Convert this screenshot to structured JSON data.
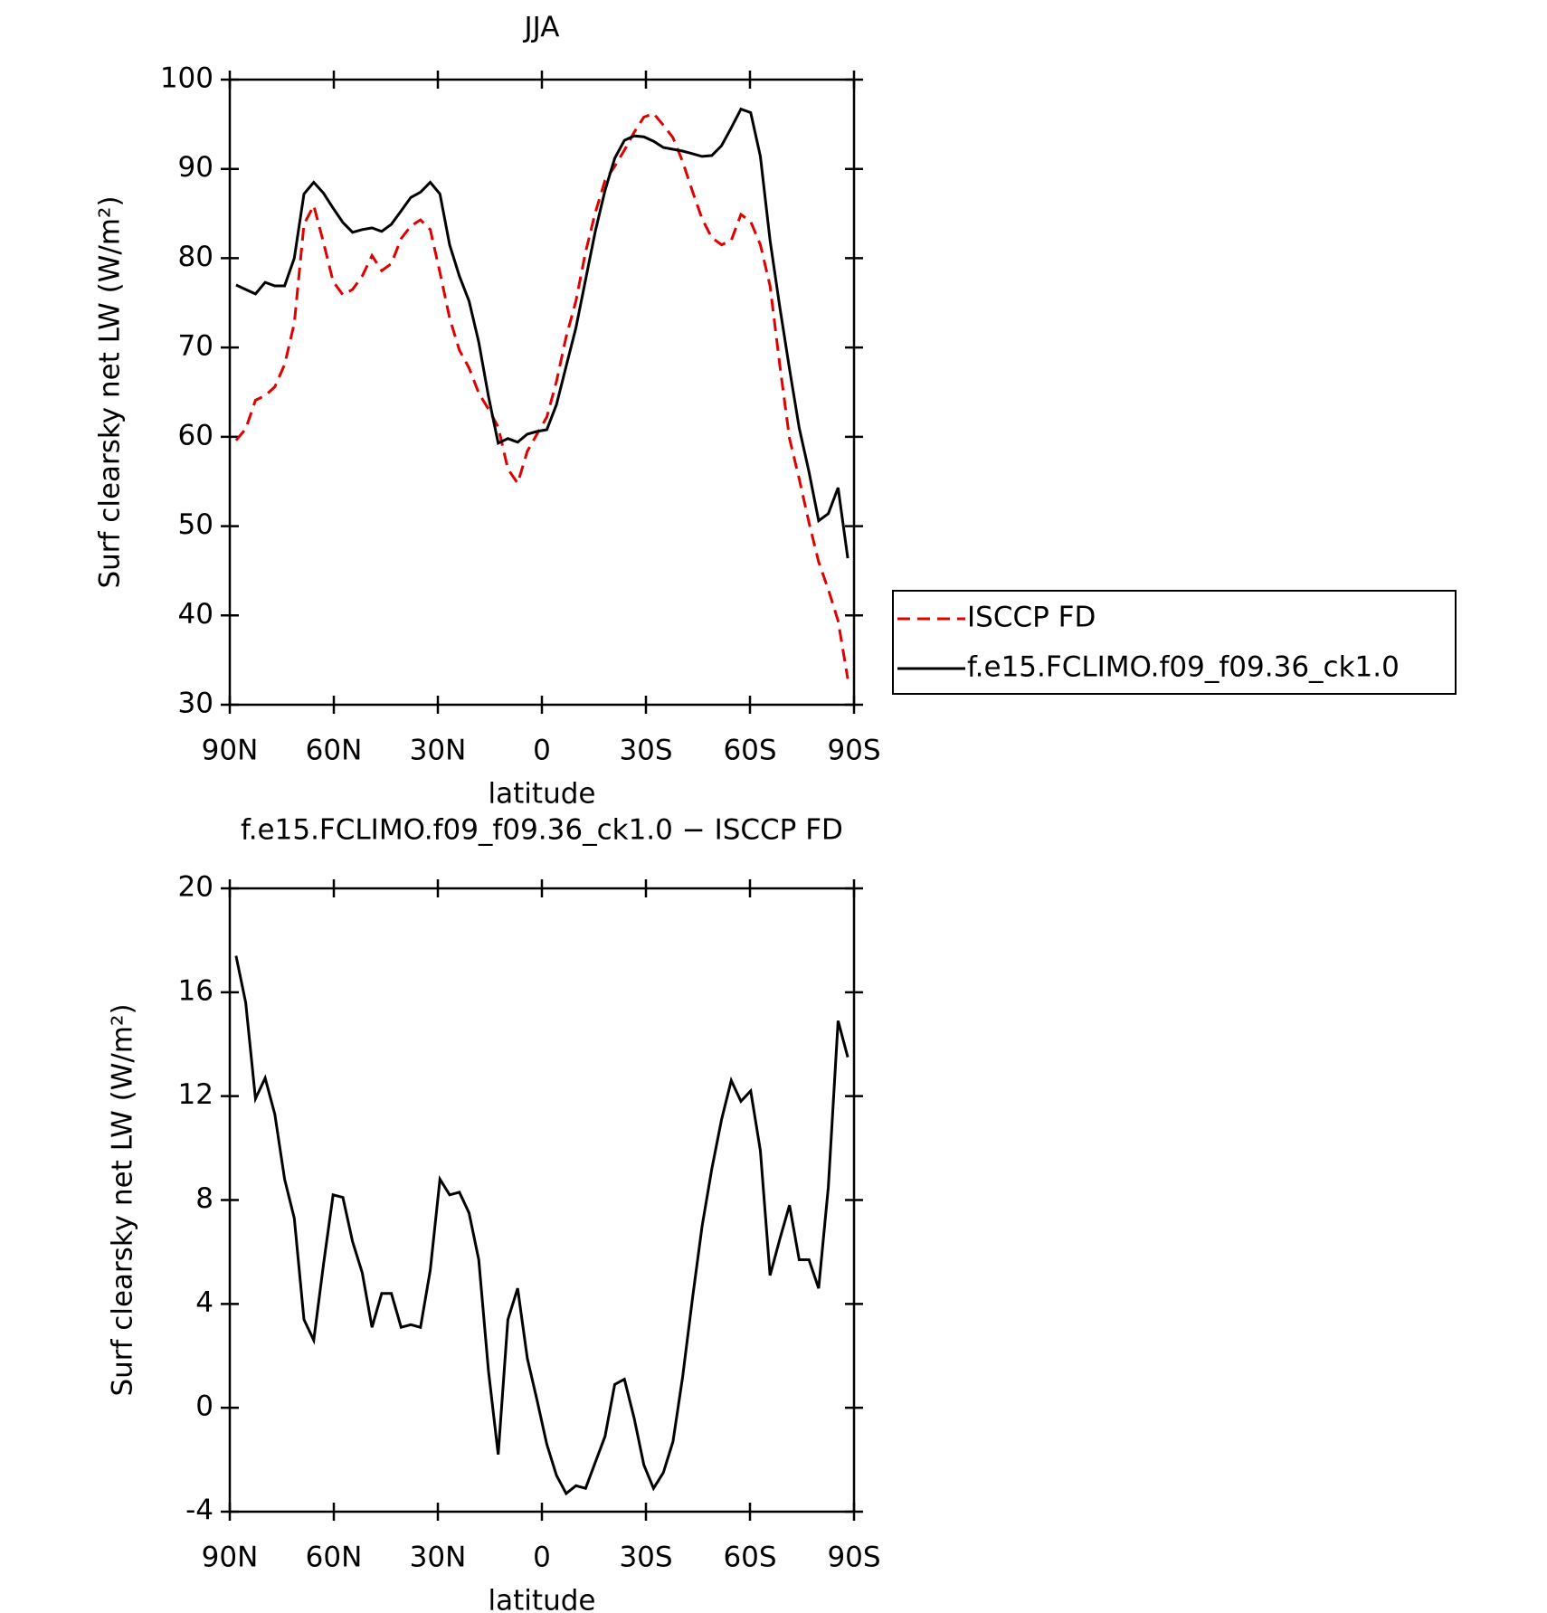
{
  "chart_data": [
    {
      "type": "line",
      "title": "JJA",
      "xlabel": "latitude",
      "ylabel": "Surf clearsky net LW (W/m²)",
      "x": [
        88.2,
        85.4,
        82.6,
        79.8,
        77,
        74.2,
        71.4,
        68.6,
        65.8,
        63,
        60.2,
        57.4,
        54.6,
        51.8,
        49,
        46.2,
        43.4,
        40.6,
        37.8,
        35,
        32.2,
        29.4,
        26.6,
        23.8,
        21,
        18.2,
        15.4,
        12.6,
        9.8,
        7,
        4.2,
        1.4,
        -1.4,
        -4.2,
        -7,
        -9.8,
        -12.6,
        -15.4,
        -18.2,
        -21,
        -23.8,
        -26.6,
        -29.4,
        -32.2,
        -35,
        -37.8,
        -40.6,
        -43.4,
        -46.2,
        -49,
        -51.8,
        -54.6,
        -57.4,
        -60.2,
        -63,
        -65.8,
        -68.6,
        -71.4,
        -74.2,
        -77,
        -79.8,
        -82.6,
        -85.4,
        -88.2
      ],
      "series": [
        {
          "name": "ISCCP FD",
          "color": "#e00000",
          "linestyle": "dashed",
          "values": [
            59.6,
            60.9,
            64.1,
            64.6,
            65.6,
            68.1,
            72.7,
            83.8,
            85.9,
            81.8,
            77.4,
            75.9,
            76.5,
            78,
            80.3,
            78.6,
            79.4,
            82.2,
            83.6,
            84.3,
            83.2,
            78.4,
            73.3,
            69.7,
            67.7,
            64.9,
            63.1,
            61.1,
            56.4,
            54.8,
            58.4,
            60.3,
            62.2,
            66.2,
            71.2,
            75.2,
            80.7,
            85.1,
            88.7,
            90.3,
            92.1,
            94.1,
            95.8,
            96.2,
            94.9,
            93.5,
            90.8,
            87.5,
            84.4,
            82.3,
            81.5,
            82,
            84.9,
            84.1,
            81.5,
            76.9,
            68,
            59.8,
            55.3,
            50.4,
            46,
            42.9,
            39.4,
            32.9
          ]
        },
        {
          "name": "f.e15.FCLIMO.f09_f09.36_ck1.0",
          "color": "#000000",
          "linestyle": "solid",
          "values": [
            77,
            76.5,
            76,
            77.3,
            76.9,
            76.9,
            80,
            87.2,
            88.5,
            87.3,
            85.6,
            84,
            82.9,
            83.2,
            83.4,
            83,
            83.8,
            85.3,
            86.8,
            87.4,
            88.5,
            87.2,
            81.5,
            78,
            75.2,
            70.6,
            64.5,
            59.3,
            59.8,
            59.4,
            60.3,
            60.6,
            60.8,
            63.6,
            67.9,
            72.2,
            77.6,
            83,
            87.6,
            91.2,
            93.2,
            93.7,
            93.6,
            93.1,
            92.4,
            92.2,
            92,
            91.7,
            91.4,
            91.5,
            92.6,
            94.6,
            96.7,
            96.3,
            91.4,
            82,
            74.5,
            67.6,
            61,
            56.1,
            50.6,
            51.4,
            54.3,
            46.4
          ]
        }
      ],
      "xlim": [
        90,
        -90
      ],
      "xticks": [
        {
          "value": 90,
          "label": "90N"
        },
        {
          "value": 60,
          "label": "60N"
        },
        {
          "value": 30,
          "label": "30N"
        },
        0,
        {
          "value": -30,
          "label": "30S"
        },
        {
          "value": -60,
          "label": "60S"
        },
        {
          "value": -90,
          "label": "90S"
        }
      ],
      "ylim": [
        30,
        100
      ],
      "yticks": [
        30,
        40,
        50,
        60,
        70,
        80,
        90,
        100
      ],
      "legend": "outside-right"
    },
    {
      "type": "line",
      "title": "f.e15.FCLIMO.f09_f09.36_ck1.0 − ISCCP FD",
      "xlabel": "latitude",
      "ylabel": "Surf clearsky net LW (W/m²)",
      "x": [
        88.2,
        85.4,
        82.6,
        79.8,
        77,
        74.2,
        71.4,
        68.6,
        65.8,
        63,
        60.2,
        57.4,
        54.6,
        51.8,
        49,
        46.2,
        43.4,
        40.6,
        37.8,
        35,
        32.2,
        29.4,
        26.6,
        23.8,
        21,
        18.2,
        15.4,
        12.6,
        9.8,
        7,
        4.2,
        1.4,
        -1.4,
        -4.2,
        -7,
        -9.8,
        -12.6,
        -15.4,
        -18.2,
        -21,
        -23.8,
        -26.6,
        -29.4,
        -32.2,
        -35,
        -37.8,
        -40.6,
        -43.4,
        -46.2,
        -49,
        -51.8,
        -54.6,
        -57.4,
        -60.2,
        -63,
        -65.8,
        -68.6,
        -71.4,
        -74.2,
        -77,
        -79.8,
        -82.6,
        -85.4,
        -88.2
      ],
      "series": [
        {
          "color": "#000000",
          "linestyle": "solid",
          "values": [
            17.4,
            15.6,
            11.9,
            12.7,
            11.3,
            8.8,
            7.3,
            3.4,
            2.6,
            5.5,
            8.2,
            8.1,
            6.4,
            5.2,
            3.1,
            4.4,
            4.4,
            3.1,
            3.2,
            3.1,
            5.3,
            8.8,
            8.2,
            8.3,
            7.5,
            5.7,
            1.4,
            -1.8,
            3.4,
            4.6,
            1.9,
            0.3,
            -1.4,
            -2.6,
            -3.3,
            -3,
            -3.1,
            -2.1,
            -1.1,
            0.9,
            1.1,
            -0.4,
            -2.2,
            -3.1,
            -2.5,
            -1.3,
            1.2,
            4.2,
            7,
            9.2,
            11.1,
            12.6,
            11.8,
            12.2,
            9.9,
            5.1,
            6.5,
            7.8,
            5.7,
            5.7,
            4.6,
            8.5,
            14.9,
            13.5
          ]
        }
      ],
      "xlim": [
        90,
        -90
      ],
      "xticks": [
        {
          "value": 90,
          "label": "90N"
        },
        {
          "value": 60,
          "label": "60N"
        },
        {
          "value": 30,
          "label": "30N"
        },
        0,
        {
          "value": -30,
          "label": "30S"
        },
        {
          "value": -60,
          "label": "60S"
        },
        {
          "value": -90,
          "label": "90S"
        }
      ],
      "ylim": [
        -4,
        20
      ],
      "yticks": [
        -4,
        0,
        4,
        8,
        12,
        16,
        20
      ]
    }
  ]
}
